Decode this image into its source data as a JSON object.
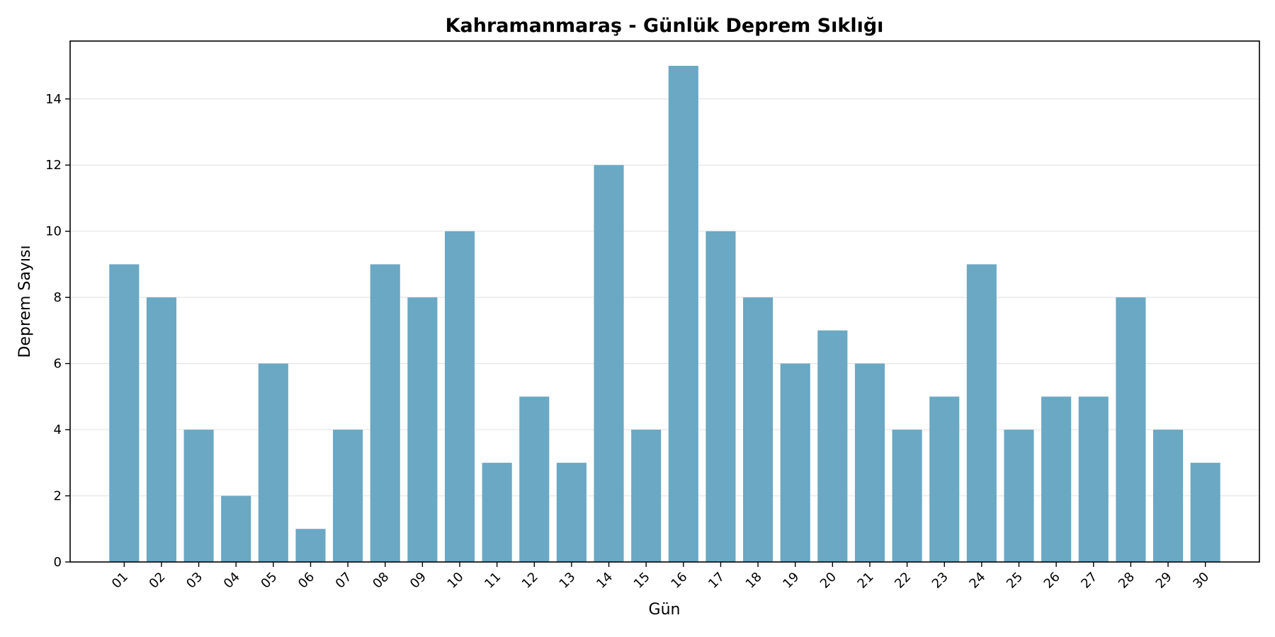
{
  "chart_data": {
    "type": "bar",
    "title": "Kahramanmaraş - Günlük Deprem Sıklığı",
    "xlabel": "Gün",
    "ylabel": "Deprem Sayısı",
    "categories": [
      "01",
      "02",
      "03",
      "04",
      "05",
      "06",
      "07",
      "08",
      "09",
      "10",
      "11",
      "12",
      "13",
      "14",
      "15",
      "16",
      "17",
      "18",
      "19",
      "20",
      "21",
      "22",
      "23",
      "24",
      "25",
      "26",
      "27",
      "28",
      "29",
      "30"
    ],
    "values": [
      9,
      8,
      4,
      2,
      6,
      1,
      4,
      9,
      8,
      10,
      3,
      5,
      3,
      12,
      4,
      15,
      10,
      8,
      6,
      7,
      6,
      4,
      5,
      9,
      4,
      5,
      5,
      8,
      4,
      3
    ],
    "ylim": [
      0,
      15.75
    ],
    "yticks": [
      0,
      2,
      4,
      6,
      8,
      10,
      12,
      14
    ],
    "grid": "horizontal",
    "bar_color": "#6aa8c4"
  }
}
